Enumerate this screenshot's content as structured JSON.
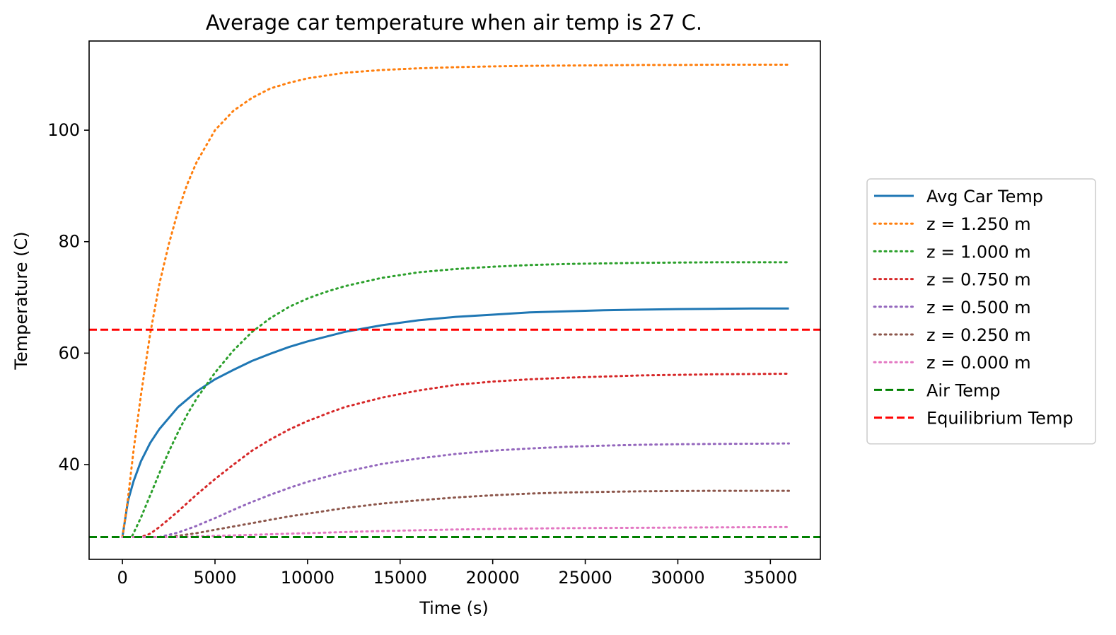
{
  "chart_data": {
    "type": "line",
    "title": "Average car temperature when air temp is 27 C.",
    "xlabel": "Time (s)",
    "ylabel": "Temperature (C)",
    "xlim": [
      -1800,
      37700
    ],
    "ylim": [
      23.0,
      116.0
    ],
    "xticks": [
      0,
      5000,
      10000,
      15000,
      20000,
      25000,
      30000,
      35000
    ],
    "yticks": [
      40,
      60,
      80,
      100
    ],
    "grid": false,
    "legend_position": "outside-right",
    "series": [
      {
        "name": "Avg Car Temp",
        "color": "#1f77b4",
        "style": "solid",
        "x": [
          0,
          300,
          600,
          1000,
          1500,
          2000,
          3000,
          4000,
          5000,
          6000,
          7000,
          8000,
          9000,
          10000,
          12000,
          14000,
          16000,
          18000,
          20000,
          22000,
          24000,
          26000,
          28000,
          30000,
          32000,
          34000,
          36000
        ],
        "y": [
          27.0,
          33.5,
          37.0,
          40.6,
          43.9,
          46.4,
          50.3,
          53.1,
          55.3,
          57.0,
          58.6,
          59.9,
          61.1,
          62.1,
          63.8,
          65.0,
          65.9,
          66.5,
          66.9,
          67.3,
          67.5,
          67.7,
          67.8,
          67.9,
          67.95,
          68.0,
          68.0
        ]
      },
      {
        "name": "z = 1.250 m",
        "color": "#ff7f0e",
        "style": "dotted",
        "x": [
          0,
          300,
          600,
          1000,
          1500,
          2000,
          2500,
          3000,
          3500,
          4000,
          5000,
          6000,
          7000,
          8000,
          9000,
          10000,
          12000,
          14000,
          16000,
          18000,
          20000,
          22000,
          24000,
          26000,
          28000,
          30000,
          32000,
          34000,
          36000
        ],
        "y": [
          27.0,
          34.0,
          42.5,
          52.5,
          63.5,
          72.5,
          79.5,
          85.5,
          90.3,
          94.2,
          100.0,
          103.5,
          105.8,
          107.5,
          108.5,
          109.3,
          110.3,
          110.8,
          111.1,
          111.3,
          111.45,
          111.55,
          111.6,
          111.65,
          111.7,
          111.7,
          111.75,
          111.75,
          111.75
        ]
      },
      {
        "name": "z = 1.000 m",
        "color": "#2ca02c",
        "style": "dotted",
        "x": [
          0,
          500,
          1000,
          1500,
          2000,
          2500,
          3000,
          3500,
          4000,
          5000,
          6000,
          7000,
          8000,
          9000,
          10000,
          11000,
          12000,
          14000,
          16000,
          18000,
          20000,
          22000,
          24000,
          26000,
          28000,
          30000,
          32000,
          34000,
          36000
        ],
        "y": [
          27.0,
          27.0,
          30.5,
          34.5,
          38.5,
          42.3,
          45.8,
          49.0,
          51.8,
          56.5,
          60.5,
          63.8,
          66.3,
          68.3,
          69.8,
          71.0,
          72.0,
          73.5,
          74.5,
          75.1,
          75.5,
          75.8,
          76.0,
          76.1,
          76.2,
          76.25,
          76.3,
          76.3,
          76.3
        ]
      },
      {
        "name": "z = 0.750 m",
        "color": "#d62728",
        "style": "dotted",
        "x": [
          0,
          1000,
          1500,
          2000,
          2500,
          3000,
          4000,
          5000,
          6000,
          7000,
          8000,
          9000,
          10000,
          11000,
          12000,
          14000,
          16000,
          18000,
          20000,
          22000,
          24000,
          26000,
          28000,
          30000,
          32000,
          34000,
          36000
        ],
        "y": [
          27.0,
          27.0,
          27.6,
          28.8,
          30.2,
          31.6,
          34.6,
          37.4,
          40.0,
          42.5,
          44.5,
          46.3,
          47.8,
          49.1,
          50.3,
          52.0,
          53.3,
          54.3,
          54.9,
          55.3,
          55.6,
          55.8,
          56.0,
          56.1,
          56.2,
          56.25,
          56.3
        ]
      },
      {
        "name": "z = 0.500 m",
        "color": "#9467bd",
        "style": "dotted",
        "x": [
          0,
          2000,
          3000,
          4000,
          5000,
          6000,
          7000,
          8000,
          9000,
          10000,
          12000,
          14000,
          16000,
          18000,
          20000,
          22000,
          24000,
          26000,
          28000,
          30000,
          32000,
          34000,
          36000
        ],
        "y": [
          27.0,
          27.0,
          27.8,
          29.0,
          30.4,
          31.9,
          33.3,
          34.6,
          35.8,
          36.9,
          38.7,
          40.1,
          41.1,
          41.9,
          42.5,
          42.9,
          43.2,
          43.4,
          43.55,
          43.65,
          43.7,
          43.75,
          43.8
        ]
      },
      {
        "name": "z = 0.250 m",
        "color": "#8c564b",
        "style": "dotted",
        "x": [
          0,
          2500,
          4000,
          5000,
          6000,
          7000,
          8000,
          9000,
          10000,
          12000,
          14000,
          16000,
          18000,
          20000,
          22000,
          24000,
          26000,
          28000,
          30000,
          32000,
          34000,
          36000
        ],
        "y": [
          27.0,
          27.0,
          27.7,
          28.3,
          28.9,
          29.5,
          30.1,
          30.7,
          31.2,
          32.2,
          33.0,
          33.6,
          34.1,
          34.5,
          34.8,
          35.0,
          35.1,
          35.2,
          35.25,
          35.3,
          35.3,
          35.3
        ]
      },
      {
        "name": "z = 0.000 m",
        "color": "#e377c2",
        "style": "dotted",
        "x": [
          0,
          3000,
          5000,
          7000,
          9000,
          11000,
          13000,
          15000,
          18000,
          21000,
          24000,
          27000,
          30000,
          33000,
          36000
        ],
        "y": [
          27.0,
          27.0,
          27.2,
          27.4,
          27.6,
          27.8,
          28.0,
          28.15,
          28.35,
          28.5,
          28.6,
          28.65,
          28.7,
          28.75,
          28.8
        ]
      },
      {
        "name": "Air Temp",
        "color": "#008000",
        "style": "dashed",
        "hline": 27.0
      },
      {
        "name": "Equilibrium Temp",
        "color": "#ff0000",
        "style": "dashed",
        "hline": 64.2
      }
    ]
  }
}
